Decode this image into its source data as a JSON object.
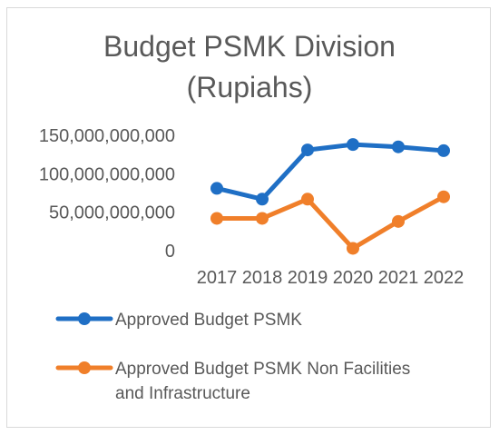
{
  "chart_data": {
    "type": "line",
    "title_line1": "Budget PSMK Division",
    "title_line2": "(Rupiahs)",
    "categories": [
      "2017",
      "2018",
      "2019",
      "2020",
      "2021",
      "2022"
    ],
    "y_ticks": [
      {
        "value": 0,
        "label": "0"
      },
      {
        "value": 50000000000,
        "label": "50,000,000,000"
      },
      {
        "value": 100000000000,
        "label": "100,000,000,000"
      },
      {
        "value": 150000000000,
        "label": "150,000,000,000"
      }
    ],
    "ylim": [
      0,
      150000000000
    ],
    "grid": false,
    "legend_position": "bottom",
    "series": [
      {
        "name": "Approved Budget PSMK",
        "legend_lines": [
          "Approved Budget PSMK"
        ],
        "color": "#1f6fc5",
        "values": [
          81000000000,
          67000000000,
          131000000000,
          138000000000,
          135000000000,
          130000000000
        ]
      },
      {
        "name": "Approved Budget PSMK Non Facilities and Infrastructure",
        "legend_lines": [
          "Approved Budget PSMK Non Facilities",
          "and Infrastructure"
        ],
        "color": "#f07f2a",
        "values": [
          42000000000,
          42000000000,
          67000000000,
          3000000000,
          38000000000,
          70000000000
        ]
      }
    ]
  }
}
